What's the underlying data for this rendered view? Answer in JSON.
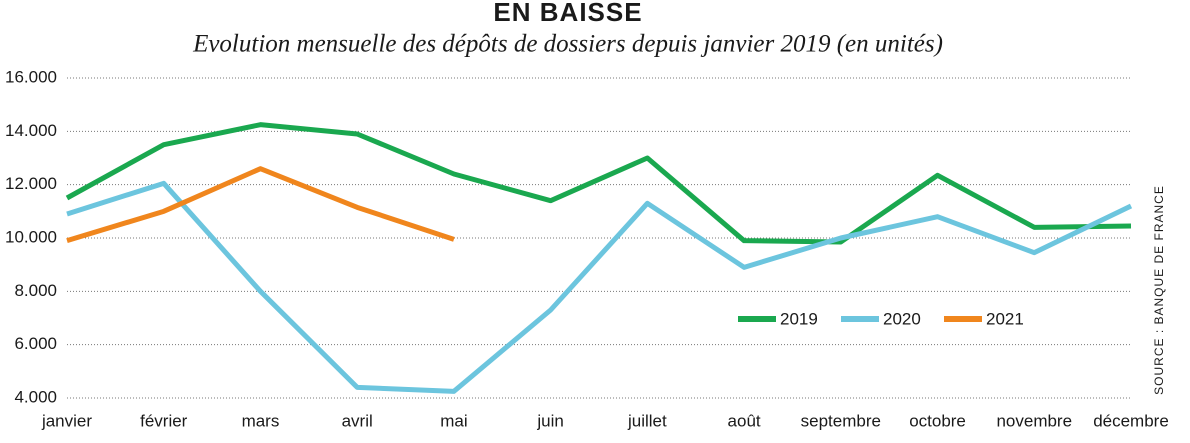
{
  "chart_data": {
    "type": "line",
    "title": "EN BAISSE",
    "subtitle": "Evolution mensuelle des dépôts de dossiers depuis janvier 2019 (en unités)",
    "source": "SOURCE : BANQUE DE FRANCE",
    "categories": [
      "janvier",
      "février",
      "mars",
      "avril",
      "mai",
      "juin",
      "juillet",
      "août",
      "septembre",
      "octobre",
      "novembre",
      "décembre"
    ],
    "series": [
      {
        "name": "2019",
        "color": "#1aa84f",
        "values": [
          11500,
          13500,
          14250,
          13900,
          12400,
          11400,
          13000,
          9900,
          9850,
          12350,
          10400,
          10450
        ]
      },
      {
        "name": "2020",
        "color": "#6cc5de",
        "values": [
          10900,
          12050,
          8000,
          4400,
          4250,
          7300,
          11300,
          8900,
          10000,
          10800,
          9450,
          11200
        ]
      },
      {
        "name": "2021",
        "color": "#f0861d",
        "values": [
          9900,
          11000,
          12600,
          11150,
          9950,
          null,
          null,
          null,
          null,
          null,
          null,
          null
        ]
      }
    ],
    "ylim": [
      4000,
      16000
    ],
    "yticks": [
      {
        "value": 4000,
        "label": "4.000"
      },
      {
        "value": 6000,
        "label": "6.000"
      },
      {
        "value": 8000,
        "label": "8.000"
      },
      {
        "value": 10000,
        "label": "10.000"
      },
      {
        "value": 12000,
        "label": "12.000"
      },
      {
        "value": 14000,
        "label": "14.000"
      },
      {
        "value": 16000,
        "label": "16.000"
      }
    ],
    "grid": true,
    "legend": "right"
  }
}
